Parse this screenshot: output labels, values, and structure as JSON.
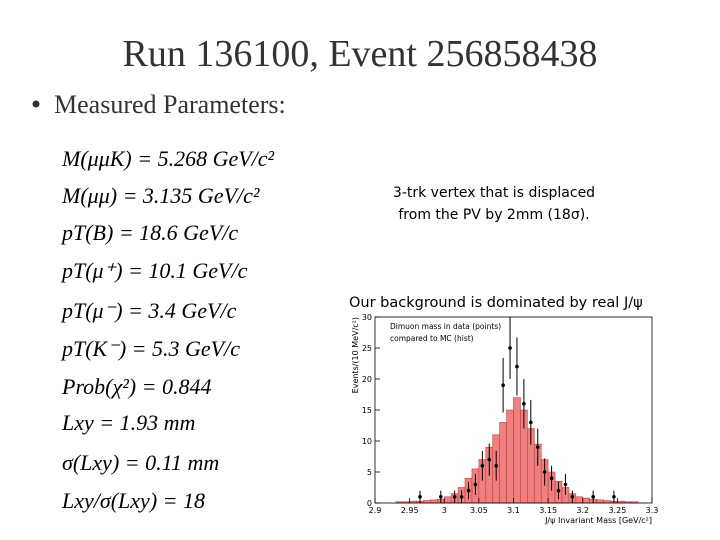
{
  "title": "Run 136100, Event 256858438",
  "bullet": "Measured Parameters:",
  "equations": [
    "M(μμK) = 5.268 GeV/c²",
    "M(μμ) = 3.135 GeV/c²",
    "pT(B) = 18.6 GeV/c",
    "pT(μ⁺) = 10.1 GeV/c",
    "pT(μ⁻) = 3.4 GeV/c",
    "pT(K⁻) = 5.3 GeV/c",
    "Prob(χ²) = 0.844",
    "Lxy = 1.93 mm",
    "σ(Lxy) = 0.11 mm",
    "Lxy/σ(Lxy) = 18"
  ],
  "note": [
    "3-trk vertex that is displaced",
    "from the PV by 2mm (18σ)."
  ],
  "background_note": "Our background is dominated by real J/ψ",
  "chart_data": {
    "type": "histogram",
    "annotation": [
      "Dimuon mass in data (points)",
      "compared to MC (hist)"
    ],
    "xlabel": "J/ψ Invariant Mass [GeV/c²]",
    "ylabel": "Events/(10 MeV/c²)",
    "bins": [
      2.9,
      2.91,
      2.92,
      2.93,
      2.94,
      2.95,
      2.96,
      2.97,
      2.98,
      2.99,
      3.0,
      3.01,
      3.02,
      3.03,
      3.04,
      3.05,
      3.06,
      3.07,
      3.08,
      3.09,
      3.1,
      3.11,
      3.12,
      3.13,
      3.14,
      3.15,
      3.16,
      3.17,
      3.18,
      3.19,
      3.2,
      3.21,
      3.22,
      3.23,
      3.24,
      3.25,
      3.26,
      3.27,
      3.28,
      3.29,
      3.3
    ],
    "values": [
      0,
      0,
      0,
      0.2,
      0.2,
      0.3,
      0.3,
      0.4,
      0.5,
      0.6,
      1,
      1.5,
      2.5,
      4,
      5.5,
      7,
      9,
      11,
      13,
      15,
      17,
      15,
      12,
      9.5,
      7,
      5,
      3.5,
      2.5,
      1.5,
      1,
      0.8,
      0.6,
      0.5,
      0.4,
      0.3,
      0.3,
      0.2,
      0.2,
      0,
      0
    ],
    "color": "#f08080",
    "points": {
      "x": [
        2.965,
        2.995,
        3.015,
        3.025,
        3.035,
        3.045,
        3.055,
        3.065,
        3.075,
        3.085,
        3.095,
        3.105,
        3.115,
        3.125,
        3.135,
        3.145,
        3.155,
        3.165,
        3.175,
        3.185,
        3.215,
        3.245
      ],
      "values": [
        1,
        1,
        1,
        1,
        2,
        3,
        6,
        7,
        6,
        19,
        25,
        22,
        16,
        13,
        9,
        5,
        4,
        2,
        3,
        1,
        1,
        1
      ],
      "errors": [
        1,
        1,
        1,
        1,
        1.4,
        1.7,
        2.4,
        2.6,
        2.4,
        4.4,
        5,
        4.7,
        4,
        3.6,
        3,
        2.2,
        2,
        1.4,
        1.7,
        1,
        1,
        1
      ]
    },
    "xlim": [
      2.9,
      3.3
    ],
    "ylim": [
      0,
      30
    ],
    "xticks": [
      2.9,
      2.95,
      3,
      3.05,
      3.1,
      3.15,
      3.2,
      3.25,
      3.3
    ],
    "yticks": [
      0,
      5,
      10,
      15,
      20,
      25,
      30
    ]
  }
}
